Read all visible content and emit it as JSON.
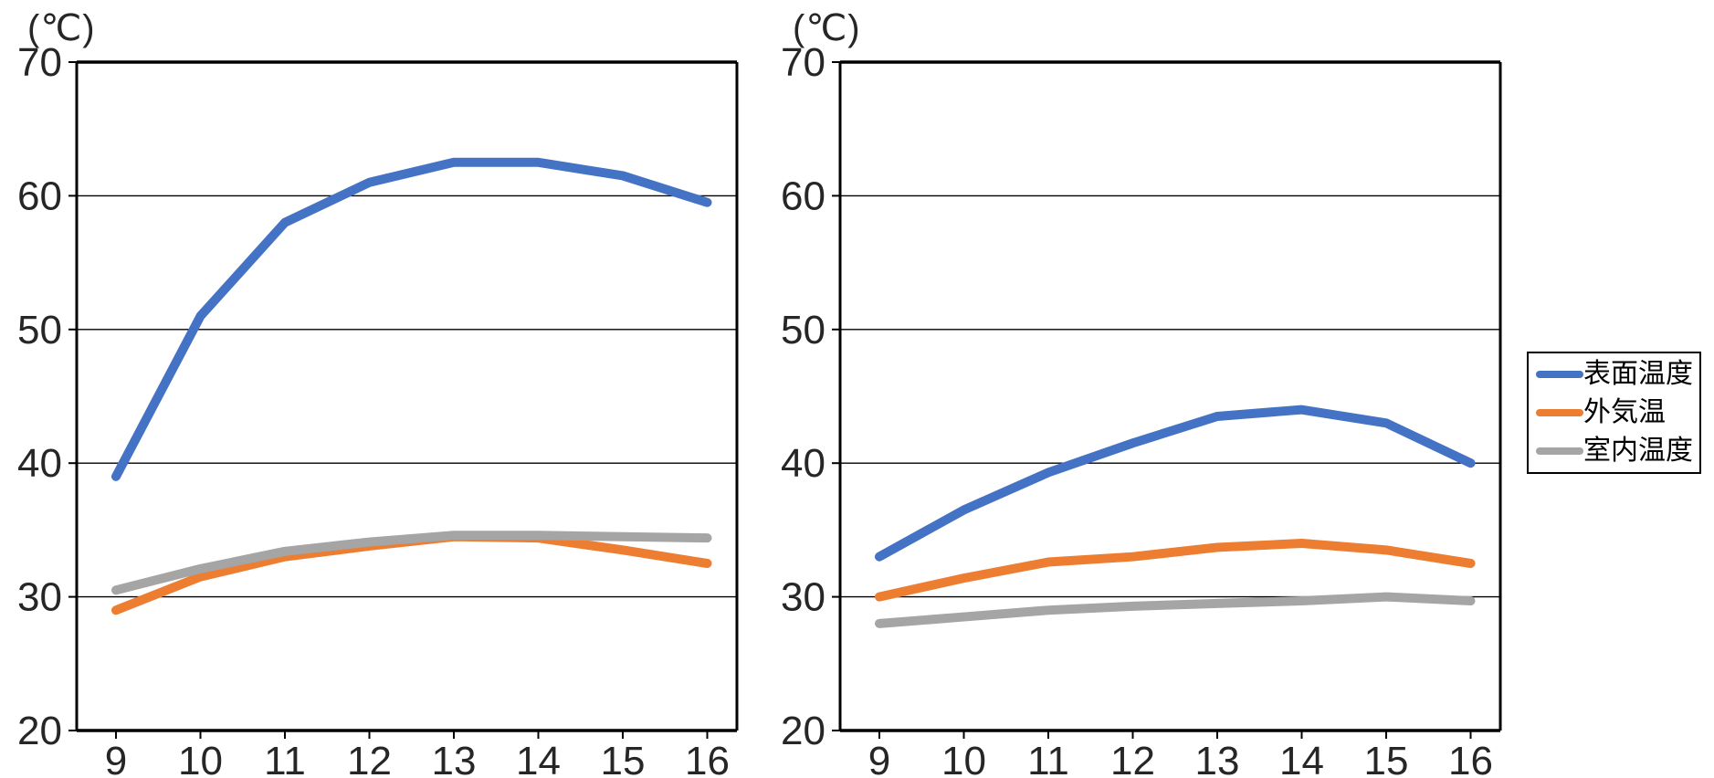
{
  "page": {
    "background": "#ffffff"
  },
  "legend": {
    "position": "outside-right",
    "items": [
      {
        "label": "表面温度",
        "color": "#4472C4"
      },
      {
        "label": "外気温",
        "color": "#ED7D31"
      },
      {
        "label": "室内温度",
        "color": "#A5A5A5"
      }
    ]
  },
  "chart_data": [
    {
      "type": "line",
      "title": "",
      "unit_label": "(℃)",
      "xlabel": "",
      "ylabel": "℃",
      "x": [
        9,
        10,
        11,
        12,
        13,
        14,
        15,
        16
      ],
      "ylim": [
        20,
        70
      ],
      "yticks": [
        20,
        30,
        40,
        50,
        60,
        70
      ],
      "grid": true,
      "series": [
        {
          "name": "表面温度",
          "color": "#4472C4",
          "values": [
            39,
            51,
            58,
            61,
            62.5,
            62.5,
            61.5,
            59.5
          ]
        },
        {
          "name": "外気温",
          "color": "#ED7D31",
          "values": [
            29,
            31.5,
            33,
            33.8,
            34.5,
            34.4,
            33.5,
            32.5
          ]
        },
        {
          "name": "室内温度",
          "color": "#A5A5A5",
          "values": [
            30.5,
            32.1,
            33.4,
            34.1,
            34.6,
            34.6,
            34.5,
            34.4
          ]
        }
      ]
    },
    {
      "type": "line",
      "title": "",
      "unit_label": "(℃)",
      "xlabel": "",
      "ylabel": "℃",
      "x": [
        9,
        10,
        11,
        12,
        13,
        14,
        15,
        16
      ],
      "ylim": [
        20,
        70
      ],
      "yticks": [
        20,
        30,
        40,
        50,
        60,
        70
      ],
      "grid": true,
      "series": [
        {
          "name": "表面温度",
          "color": "#4472C4",
          "values": [
            33,
            36.5,
            39.3,
            41.5,
            43.5,
            44,
            43,
            40
          ]
        },
        {
          "name": "外気温",
          "color": "#ED7D31",
          "values": [
            30,
            31.4,
            32.6,
            33,
            33.7,
            34,
            33.5,
            32.5
          ]
        },
        {
          "name": "室内温度",
          "color": "#A5A5A5",
          "values": [
            28,
            28.5,
            29,
            29.3,
            29.5,
            29.7,
            30,
            29.7
          ]
        }
      ]
    }
  ]
}
